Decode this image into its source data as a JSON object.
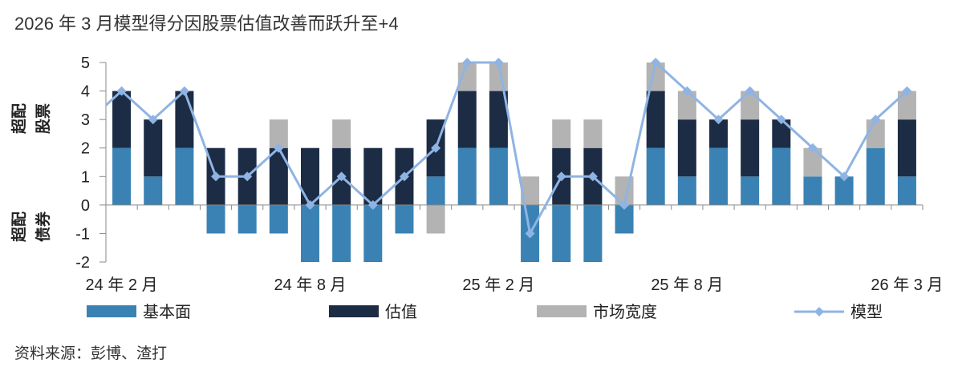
{
  "title": "2026 年 3 月模型得分因股票估值改善而跃升至+4",
  "source": "资料来源：彭博、渣打",
  "side_labels": {
    "top_line1": "超配",
    "top_line2": "股票",
    "bottom_line1": "超配",
    "bottom_line2": "债券"
  },
  "colors": {
    "fundamental": "#3a82b4",
    "valuation": "#1c2c45",
    "breadth": "#b3b3b3",
    "model": "#8fb4e3"
  },
  "chart_data": {
    "type": "bar",
    "stacked": true,
    "ylim": [
      -2,
      5
    ],
    "yticks": [
      -2,
      -1,
      0,
      1,
      2,
      3,
      4,
      5
    ],
    "categories": [
      "2024-02",
      "2024-03",
      "2024-04",
      "2024-05",
      "2024-06",
      "2024-07",
      "2024-08",
      "2024-09",
      "2024-10",
      "2024-11",
      "2024-12",
      "2025-01",
      "2025-02",
      "2025-03",
      "2025-04",
      "2025-05",
      "2025-06",
      "2025-07",
      "2025-08",
      "2025-09",
      "2025-10",
      "2025-11",
      "2025-12",
      "2026-01",
      "2026-02",
      "2026-03"
    ],
    "x_tick_labels": [
      {
        "index": 0,
        "label": "24 年 2 月"
      },
      {
        "index": 6,
        "label": "24 年 8 月"
      },
      {
        "index": 12,
        "label": "25 年 2 月"
      },
      {
        "index": 18,
        "label": "25 年 8 月"
      },
      {
        "index": 25,
        "label": "26 年 3 月"
      }
    ],
    "series": [
      {
        "name": "基本面",
        "kind": "bar",
        "values": [
          2,
          1,
          2,
          -1,
          -1,
          -1,
          -2,
          -2,
          -2,
          -1,
          1,
          2,
          2,
          -2,
          -2,
          -2,
          -1,
          2,
          1,
          2,
          1,
          2,
          1,
          1,
          2,
          1
        ]
      },
      {
        "name": "估值",
        "kind": "bar",
        "values": [
          2,
          2,
          2,
          2,
          2,
          2,
          2,
          2,
          2,
          2,
          2,
          2,
          2,
          0,
          2,
          2,
          0,
          2,
          2,
          1,
          2,
          1,
          0,
          0,
          0,
          2
        ]
      },
      {
        "name": "市场宽度",
        "kind": "bar",
        "values": [
          0,
          0,
          0,
          0,
          0,
          1,
          0,
          1,
          0,
          0,
          -1,
          1,
          1,
          1,
          1,
          1,
          1,
          1,
          1,
          0,
          1,
          0,
          1,
          0,
          1,
          1
        ]
      },
      {
        "name": "模型",
        "kind": "line",
        "values": [
          4,
          3,
          4,
          1,
          1,
          2,
          0,
          1,
          0,
          1,
          2,
          5,
          5,
          -1,
          1,
          1,
          0,
          5,
          4,
          3,
          4,
          3,
          2,
          1,
          3,
          4
        ],
        "start_value": 3.5
      }
    ]
  }
}
